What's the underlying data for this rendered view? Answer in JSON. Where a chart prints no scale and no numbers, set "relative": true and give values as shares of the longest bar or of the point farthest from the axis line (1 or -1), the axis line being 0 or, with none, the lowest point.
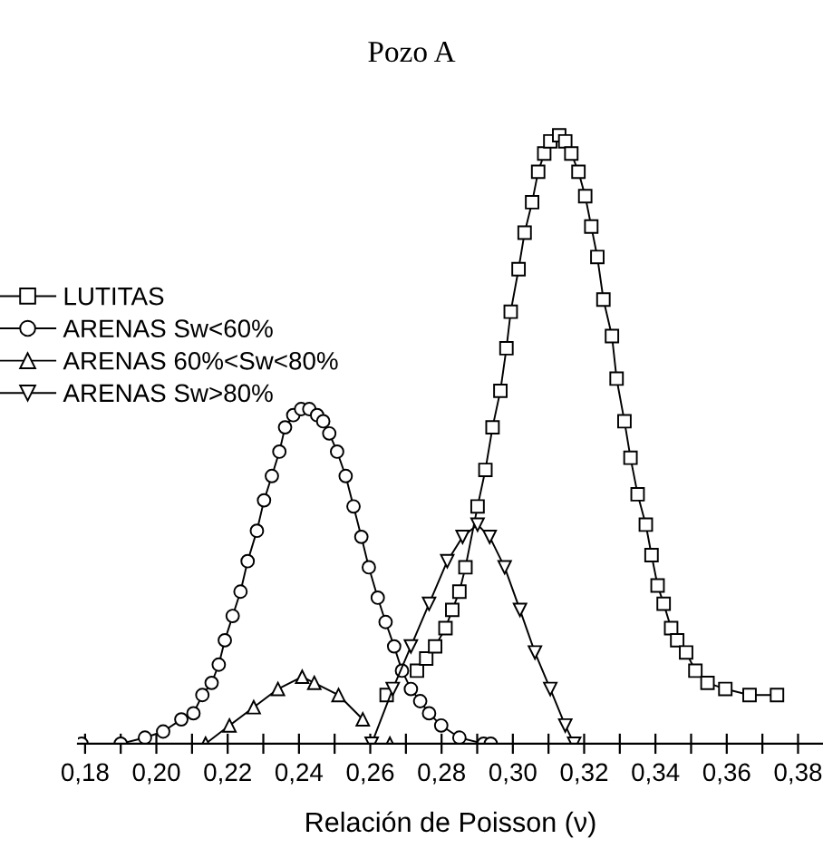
{
  "chart_data": {
    "type": "line",
    "title": "Pozo A",
    "xlabel": "Relación de Poisson (ν)",
    "relative": true,
    "legend": "top left",
    "grid": false,
    "tick_labels": "x",
    "line_style": "solid",
    "xlim": [
      0.178,
      0.387
    ],
    "xticks": [
      {
        "value": 0.18,
        "label": "0,18"
      },
      {
        "value": 0.19,
        "label": null
      },
      {
        "value": 0.2,
        "label": "0,20"
      },
      {
        "value": 0.21,
        "label": null
      },
      {
        "value": 0.22,
        "label": "0,22"
      },
      {
        "value": 0.23,
        "label": null
      },
      {
        "value": 0.24,
        "label": "0,24"
      },
      {
        "value": 0.25,
        "label": null
      },
      {
        "value": 0.26,
        "label": "0,26"
      },
      {
        "value": 0.27,
        "label": null
      },
      {
        "value": 0.28,
        "label": "0,28"
      },
      {
        "value": 0.29,
        "label": null
      },
      {
        "value": 0.3,
        "label": "0,30"
      },
      {
        "value": 0.31,
        "label": null
      },
      {
        "value": 0.32,
        "label": "0,32"
      },
      {
        "value": 0.33,
        "label": null
      },
      {
        "value": 0.34,
        "label": "0,34"
      },
      {
        "value": 0.35,
        "label": null
      },
      {
        "value": 0.36,
        "label": "0,36"
      },
      {
        "value": 0.37,
        "label": null
      },
      {
        "value": 0.38,
        "label": "0,38"
      }
    ],
    "series": [
      {
        "name": "LUTITAS",
        "color": "#000000",
        "marker": "square",
        "x": [
          0.2646,
          0.2672,
          0.2731,
          0.2757,
          0.2782,
          0.2811,
          0.283,
          0.285,
          0.2867,
          0.2901,
          0.2923,
          0.2943,
          0.2965,
          0.2982,
          0.2994,
          0.3016,
          0.3033,
          0.3054,
          0.3071,
          0.3088,
          0.3105,
          0.313,
          0.3147,
          0.3164,
          0.3184,
          0.3203,
          0.322,
          0.3237,
          0.3254,
          0.3278,
          0.3291,
          0.3313,
          0.333,
          0.335,
          0.3373,
          0.3389,
          0.3406,
          0.3423,
          0.3444,
          0.3461,
          0.3486,
          0.3512,
          0.3546,
          0.3596,
          0.3664,
          0.3741
        ],
        "values": [
          0.08,
          null,
          0.12,
          0.14,
          0.16,
          0.19,
          0.22,
          0.25,
          0.29,
          0.39,
          0.45,
          0.52,
          0.58,
          0.65,
          0.71,
          0.78,
          0.84,
          0.89,
          0.94,
          0.97,
          0.99,
          1,
          0.99,
          0.97,
          0.94,
          0.9,
          0.85,
          0.8,
          0.73,
          0.67,
          0.6,
          0.53,
          0.47,
          0.41,
          0.36,
          0.31,
          0.26,
          0.23,
          0.19,
          0.17,
          0.15,
          0.12,
          0.1,
          0.09,
          0.08,
          0.08
        ]
      },
      {
        "name": "ARENAS Sw<60%",
        "color": "#000000",
        "marker": "circle",
        "x": [
          0.179,
          0.19,
          0.1968,
          0.2019,
          0.207,
          0.2104,
          0.2129,
          0.2155,
          0.2175,
          0.2192,
          0.2214,
          0.2236,
          0.2256,
          0.2282,
          0.2302,
          0.2324,
          0.2345,
          0.2361,
          0.2384,
          0.2406,
          0.2429,
          0.2451,
          0.2468,
          0.2485,
          0.2507,
          0.2531,
          0.2553,
          0.2575,
          0.2596,
          0.2621,
          0.2643,
          0.2667,
          0.2689,
          0.2714,
          0.274,
          0.2765,
          0.2799,
          0.285,
          0.2918,
          0.2938
        ],
        "values": [
          0,
          0,
          0.01,
          0.02,
          0.04,
          0.05,
          0.08,
          0.1,
          0.13,
          0.17,
          0.21,
          0.25,
          0.3,
          0.35,
          0.4,
          0.44,
          0.48,
          0.52,
          0.54,
          0.55,
          0.55,
          0.54,
          0.53,
          0.51,
          0.48,
          0.44,
          0.39,
          0.34,
          0.29,
          0.24,
          0.2,
          0.16,
          0.12,
          0.09,
          0.07,
          0.05,
          0.03,
          0.01,
          0,
          0
        ]
      },
      {
        "name": "ARENAS 60%<Sw<80%",
        "color": "#000000",
        "marker": "triangle",
        "x": [
          0.2138,
          0.2205,
          0.2273,
          0.2341,
          0.2409,
          0.2443,
          0.2511,
          0.2579,
          0.263,
          0.2655
        ],
        "values": [
          0,
          0.03,
          0.06,
          0.09,
          0.11,
          0.1,
          0.08,
          0.04,
          null,
          0
        ]
      },
      {
        "name": "ARENAS Sw>80%",
        "color": "#000000",
        "marker": "triangle_down",
        "x": [
          0.2604,
          0.2663,
          0.2714,
          0.2765,
          0.2816,
          0.2859,
          0.2901,
          0.2935,
          0.2977,
          0.302,
          0.3062,
          0.3105,
          0.3147,
          0.3172
        ],
        "values": [
          0,
          0.09,
          0.16,
          0.23,
          0.3,
          0.34,
          0.36,
          0.34,
          0.29,
          0.22,
          0.15,
          0.09,
          0.03,
          0
        ]
      }
    ]
  }
}
